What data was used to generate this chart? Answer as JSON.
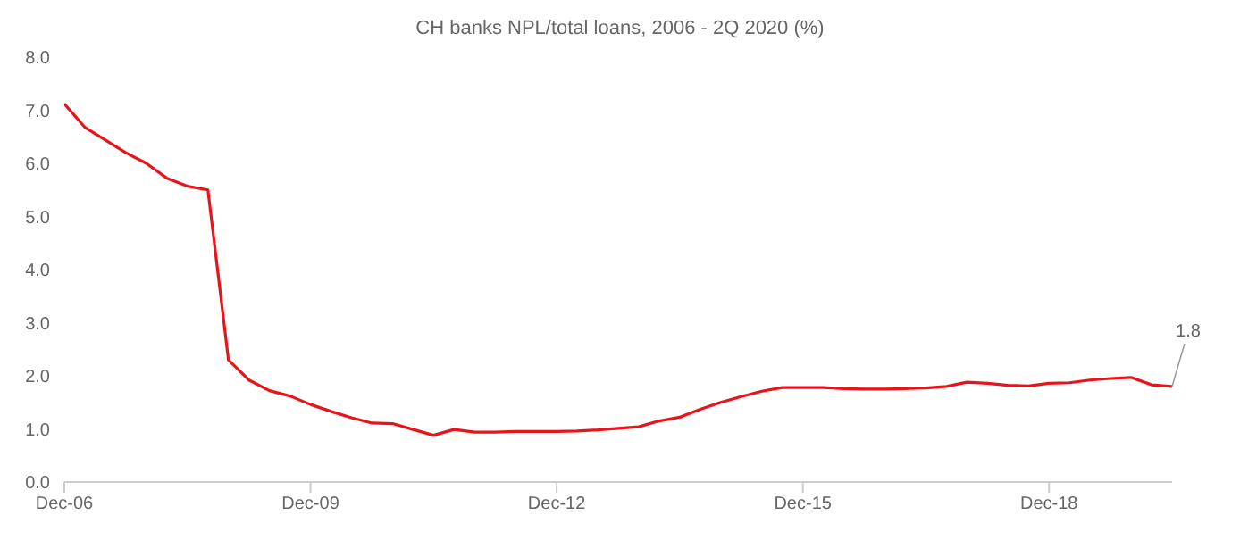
{
  "chart_data": {
    "type": "line",
    "title": "CH banks NPL/total loans, 2006 - 2Q 2020 (%)",
    "x": [
      "2006-12",
      "2007-03",
      "2007-06",
      "2007-09",
      "2007-12",
      "2008-03",
      "2008-06",
      "2008-09",
      "2008-12",
      "2009-03",
      "2009-06",
      "2009-09",
      "2009-12",
      "2010-03",
      "2010-06",
      "2010-09",
      "2010-12",
      "2011-03",
      "2011-06",
      "2011-09",
      "2011-12",
      "2012-03",
      "2012-06",
      "2012-09",
      "2012-12",
      "2013-03",
      "2013-06",
      "2013-09",
      "2013-12",
      "2014-03",
      "2014-06",
      "2014-09",
      "2014-12",
      "2015-03",
      "2015-06",
      "2015-09",
      "2015-12",
      "2016-03",
      "2016-06",
      "2016-09",
      "2016-12",
      "2017-03",
      "2017-06",
      "2017-09",
      "2017-12",
      "2018-03",
      "2018-06",
      "2018-09",
      "2018-12",
      "2019-03",
      "2019-06",
      "2019-09",
      "2019-12",
      "2020-03",
      "2020-06"
    ],
    "series": [
      {
        "color": "#e8141b",
        "values": [
          7.12,
          6.68,
          6.44,
          6.2,
          6.0,
          5.72,
          5.57,
          5.5,
          2.3,
          1.92,
          1.72,
          1.62,
          1.46,
          1.33,
          1.21,
          1.11,
          1.1,
          0.99,
          0.88,
          0.99,
          0.94,
          0.94,
          0.95,
          0.95,
          0.95,
          0.96,
          0.98,
          1.01,
          1.04,
          1.15,
          1.22,
          1.37,
          1.5,
          1.61,
          1.71,
          1.78,
          1.78,
          1.78,
          1.76,
          1.75,
          1.75,
          1.76,
          1.77,
          1.8,
          1.88,
          1.86,
          1.82,
          1.81,
          1.86,
          1.87,
          1.92,
          1.95,
          1.97,
          1.83,
          1.8
        ]
      }
    ],
    "xlim": [
      "2006-12",
      "2020-06"
    ],
    "xticks": [
      {
        "value": "2006-12",
        "label": "Dec-06"
      },
      {
        "value": "2009-12",
        "label": "Dec-09"
      },
      {
        "value": "2012-12",
        "label": "Dec-12"
      },
      {
        "value": "2015-12",
        "label": "Dec-15"
      },
      {
        "value": "2018-12",
        "label": "Dec-18"
      }
    ],
    "ylim": [
      0,
      8
    ],
    "yticks": [
      {
        "value": 0,
        "label": "0.0"
      },
      {
        "value": 1,
        "label": "1.0"
      },
      {
        "value": 2,
        "label": "2.0"
      },
      {
        "value": 3,
        "label": "3.0"
      },
      {
        "value": 4,
        "label": "4.0"
      },
      {
        "value": 5,
        "label": "5.0"
      },
      {
        "value": 6,
        "label": "6.0"
      },
      {
        "value": 7,
        "label": "7.0"
      },
      {
        "value": 8,
        "label": "8.0"
      }
    ],
    "annotations": [
      {
        "text": "1.8",
        "x": "2020-06",
        "y": 1.8
      }
    ],
    "grid": false,
    "legend": false,
    "marker": "none",
    "line_style": "solid"
  }
}
